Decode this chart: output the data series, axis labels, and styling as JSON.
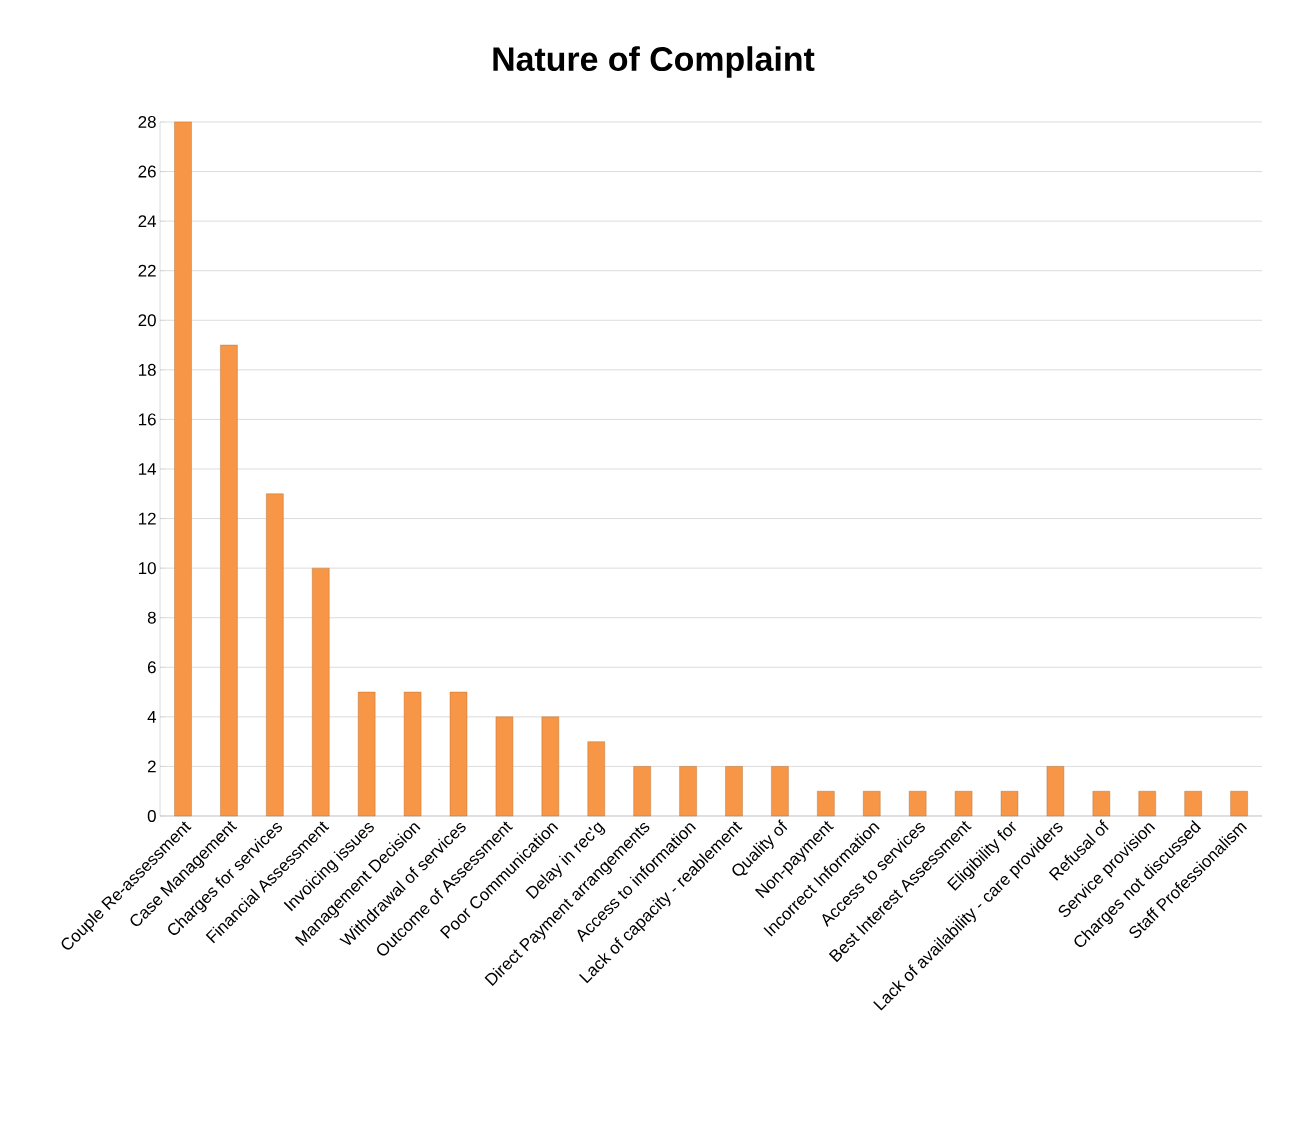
{
  "chart_data": {
    "type": "bar",
    "title": "Nature of Complaint",
    "categories": [
      "Couple Re-assessment",
      "Case Management",
      "Charges for services",
      "Financial Assessment",
      "Invoicing issues",
      "Management Decision",
      "Withdrawal of services",
      "Outcome of Assessment",
      "Poor Communication",
      "Delay in rec'g",
      "Direct Payment arrangements",
      "Access to information",
      "Lack of capacity - reablement",
      "Quality of",
      "Non-payment",
      "Incorrect Information",
      "Access to services",
      "Best Interest Assessment",
      "Eligibility for",
      "Lack of availability - care providers",
      "Refusal of",
      "Service provision",
      "Charges not discussed",
      "Staff Professionalism"
    ],
    "values": [
      28,
      19,
      13,
      10,
      5,
      5,
      5,
      4,
      4,
      3,
      2,
      2,
      2,
      2,
      1,
      1,
      1,
      1,
      1,
      2,
      1,
      1,
      1,
      1
    ],
    "color": "#f79646",
    "ylim": [
      0,
      28
    ],
    "yticks": [
      0,
      2,
      4,
      6,
      8,
      10,
      12,
      14,
      16,
      18,
      20,
      22,
      24,
      26,
      28
    ],
    "grid": "y"
  }
}
